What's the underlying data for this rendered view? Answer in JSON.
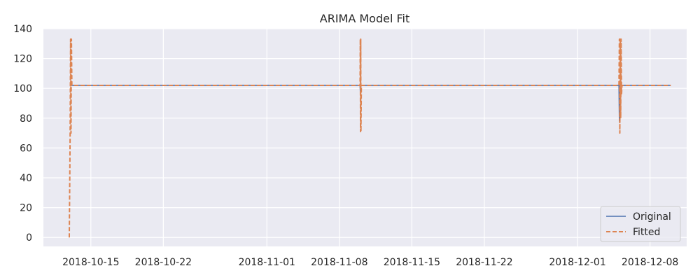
{
  "chart_data": {
    "type": "line",
    "title": "ARIMA Model Fit",
    "xlabel": "",
    "ylabel": "",
    "xlim": [
      "2018-10-10T10:00",
      "2018-12-11T13:00"
    ],
    "ylim": [
      -6,
      140
    ],
    "x_ticks": [
      "2018-10-15",
      "2018-10-22",
      "2018-11-01",
      "2018-11-08",
      "2018-11-15",
      "2018-11-22",
      "2018-12-01",
      "2018-12-08"
    ],
    "y_ticks": [
      0,
      20,
      40,
      60,
      80,
      100,
      120,
      140
    ],
    "grid": true,
    "legend": "lower right",
    "series": [
      {
        "name": "Original",
        "color": "#4c72b0",
        "style": "solid",
        "points": [
          [
            "2018-10-13T00:00",
            102
          ],
          [
            "2018-11-10T00:00",
            102
          ],
          [
            "2018-11-10T01:00",
            95
          ],
          [
            "2018-11-10T02:00",
            102
          ],
          [
            "2018-12-05T00:00",
            102
          ],
          [
            "2018-12-05T01:00",
            78
          ],
          [
            "2018-12-05T02:00",
            102
          ],
          [
            "2018-12-10T00:00",
            102
          ]
        ]
      },
      {
        "name": "Fitted",
        "color": "#dd8452",
        "style": "dashed",
        "points": [
          [
            "2018-10-12T22:00",
            0
          ],
          [
            "2018-10-13T00:00",
            70
          ],
          [
            "2018-10-13T01:00",
            133
          ],
          [
            "2018-10-13T02:00",
            70
          ],
          [
            "2018-10-13T03:00",
            133
          ],
          [
            "2018-10-13T04:00",
            102
          ],
          [
            "2018-11-10T00:00",
            102
          ],
          [
            "2018-11-10T00:30",
            133
          ],
          [
            "2018-11-10T01:00",
            71
          ],
          [
            "2018-11-10T01:30",
            133
          ],
          [
            "2018-11-10T02:00",
            71
          ],
          [
            "2018-11-10T03:00",
            102
          ],
          [
            "2018-12-05T00:00",
            102
          ],
          [
            "2018-12-05T01:00",
            133
          ],
          [
            "2018-12-05T02:00",
            70
          ],
          [
            "2018-12-05T03:00",
            133
          ],
          [
            "2018-12-05T04:00",
            80
          ],
          [
            "2018-12-05T05:00",
            133
          ],
          [
            "2018-12-05T06:00",
            96
          ],
          [
            "2018-12-05T07:00",
            102
          ],
          [
            "2018-12-10T00:00",
            102
          ]
        ]
      }
    ]
  }
}
